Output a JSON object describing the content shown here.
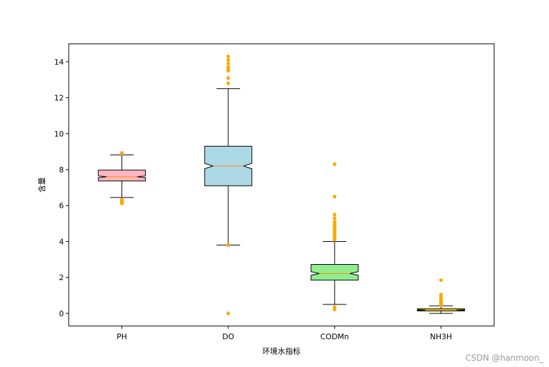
{
  "chart_data": {
    "type": "boxplot",
    "notched": true,
    "xlabel": "环境水指标",
    "ylabel": "含量",
    "ylim": [
      -0.7,
      15
    ],
    "yticks": [
      0,
      2,
      4,
      6,
      8,
      10,
      12,
      14
    ],
    "grid": false,
    "categories": [
      "PH",
      "DO",
      "CODMn",
      "NH3H"
    ],
    "colors": {
      "box_fills": [
        "#ffb6c1",
        "#add8e6",
        "#90ee90",
        "#ffff00"
      ],
      "median": "#ff8c00",
      "outliers": "#ffa500",
      "edges": "#000000"
    },
    "boxes": [
      {
        "name": "PH",
        "whislo": 6.45,
        "q1": 7.37,
        "med": 7.6,
        "q3": 7.97,
        "whishi": 8.82,
        "notch_lo": 7.55,
        "notch_hi": 7.65,
        "fliers": [
          8.93,
          8.9,
          6.35,
          6.28,
          6.22,
          6.18,
          6.15,
          6.12
        ]
      },
      {
        "name": "DO",
        "whislo": 3.8,
        "q1": 7.1,
        "med": 8.2,
        "q3": 9.3,
        "whishi": 12.5,
        "notch_lo": 8.05,
        "notch_hi": 8.35,
        "fliers": [
          14.3,
          14.1,
          13.9,
          13.7,
          13.55,
          13.5,
          13.1,
          12.8,
          3.8,
          0.0
        ]
      },
      {
        "name": "CODMn",
        "whislo": 0.5,
        "q1": 1.85,
        "med": 2.22,
        "q3": 2.72,
        "whishi": 4.0,
        "notch_lo": 2.12,
        "notch_hi": 2.32,
        "fliers": [
          8.3,
          6.5,
          5.5,
          5.3,
          5.1,
          5.0,
          4.9,
          4.8,
          4.7,
          4.6,
          4.5,
          4.4,
          4.3,
          4.2,
          4.1,
          0.35,
          0.22
        ]
      },
      {
        "name": "NH3H",
        "whislo": 0.0,
        "q1": 0.14,
        "med": 0.19,
        "q3": 0.26,
        "whishi": 0.42,
        "notch_lo": 0.17,
        "notch_hi": 0.21,
        "fliers": [
          1.85,
          1.05,
          0.95,
          0.8,
          0.75,
          0.7,
          0.65,
          0.6,
          0.55,
          0.5,
          0.46
        ]
      }
    ]
  },
  "watermark": "CSDN @hanmoon_"
}
